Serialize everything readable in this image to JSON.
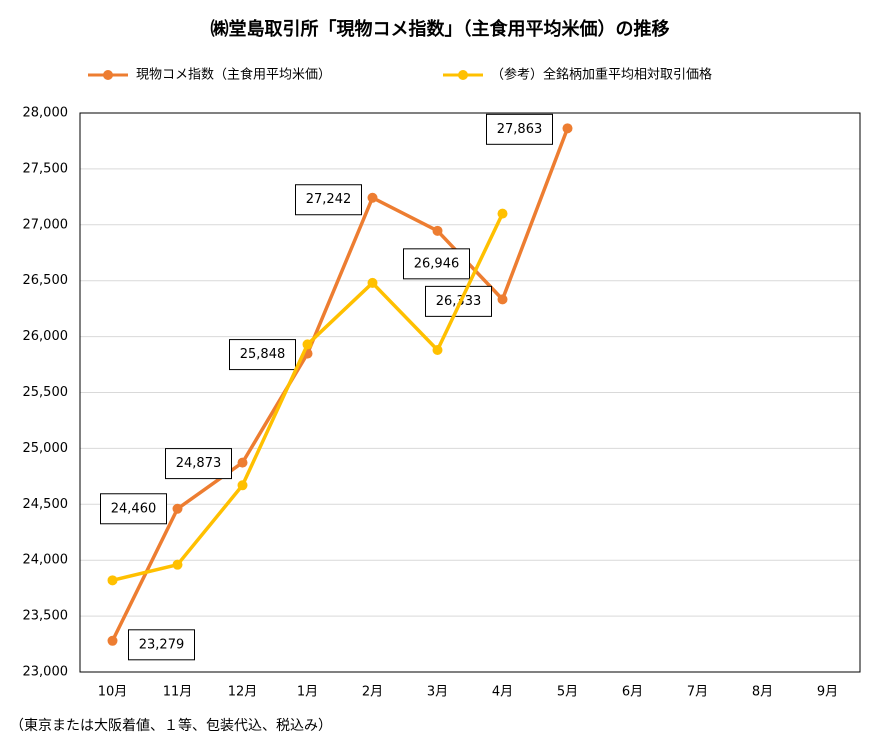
{
  "chart_data": {
    "type": "line",
    "title": "㈱堂島取引所「現物コメ指数」（主食用平均米価）の推移",
    "footnote": "（東京または大阪着値、１等、包装代込、税込み）",
    "categories": [
      "10月",
      "11月",
      "12月",
      "1月",
      "2月",
      "3月",
      "4月",
      "5月",
      "6月",
      "7月",
      "8月",
      "9月"
    ],
    "series": [
      {
        "name": "現物コメ指数（主食用平均米価）",
        "color": "#ed7d31",
        "values": [
          23279,
          24460,
          24873,
          25848,
          27242,
          26946,
          26333,
          27863,
          null,
          null,
          null,
          null
        ],
        "value_labels": [
          "23,279",
          "24,460",
          "24,873",
          "25,848",
          "27,242",
          "26,946",
          "26,333",
          "27,863",
          null,
          null,
          null,
          null
        ]
      },
      {
        "name": "（参考）全銘柄加重平均相対取引価格",
        "color": "#ffc000",
        "values": [
          23820,
          23960,
          24670,
          25930,
          26480,
          25880,
          27100,
          null,
          null,
          null,
          null,
          null
        ]
      }
    ],
    "ylim": [
      23000,
      28000
    ],
    "yticks": [
      {
        "value": 23000,
        "label": "23,000"
      },
      {
        "value": 23500,
        "label": "23,500"
      },
      {
        "value": 24000,
        "label": "24,000"
      },
      {
        "value": 24500,
        "label": "24,500"
      },
      {
        "value": 25000,
        "label": "25,000"
      },
      {
        "value": 25500,
        "label": "25,500"
      },
      {
        "value": 26000,
        "label": "26,000"
      },
      {
        "value": 26500,
        "label": "26,500"
      },
      {
        "value": 27000,
        "label": "27,000"
      },
      {
        "value": 27500,
        "label": "27,500"
      },
      {
        "value": 28000,
        "label": "28,000"
      }
    ],
    "grid": true,
    "legend": "top"
  }
}
